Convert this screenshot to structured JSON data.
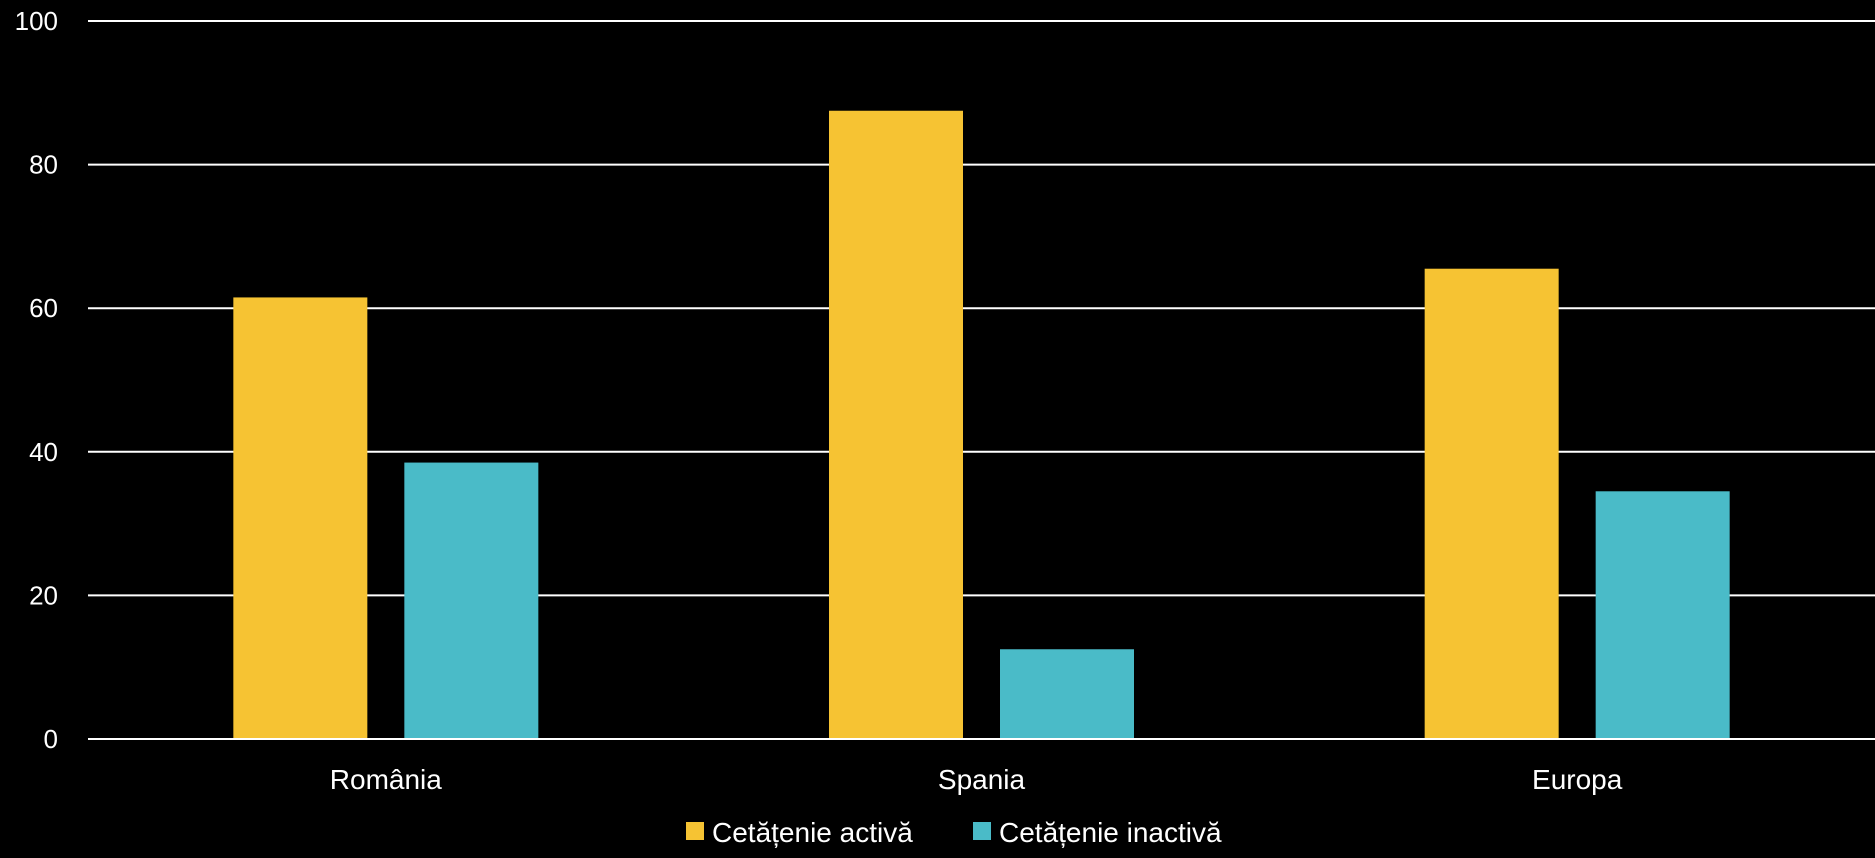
{
  "chart_data": {
    "type": "bar",
    "categories": [
      "România",
      "Spania",
      "Europa"
    ],
    "series": [
      {
        "name": "Cetățenie activă",
        "values": [
          61.5,
          87.5,
          65.5
        ],
        "color": "#F6C333"
      },
      {
        "name": "Cetățenie inactivă",
        "values": [
          38.5,
          12.5,
          34.5
        ],
        "color": "#4ABBC8"
      }
    ],
    "ylim": [
      0,
      100
    ],
    "yticks": [
      0,
      20,
      40,
      60,
      80,
      100
    ],
    "grid": true,
    "legend_position": "bottom-center",
    "background": "#000000",
    "gridline_color": "#ffffff"
  }
}
